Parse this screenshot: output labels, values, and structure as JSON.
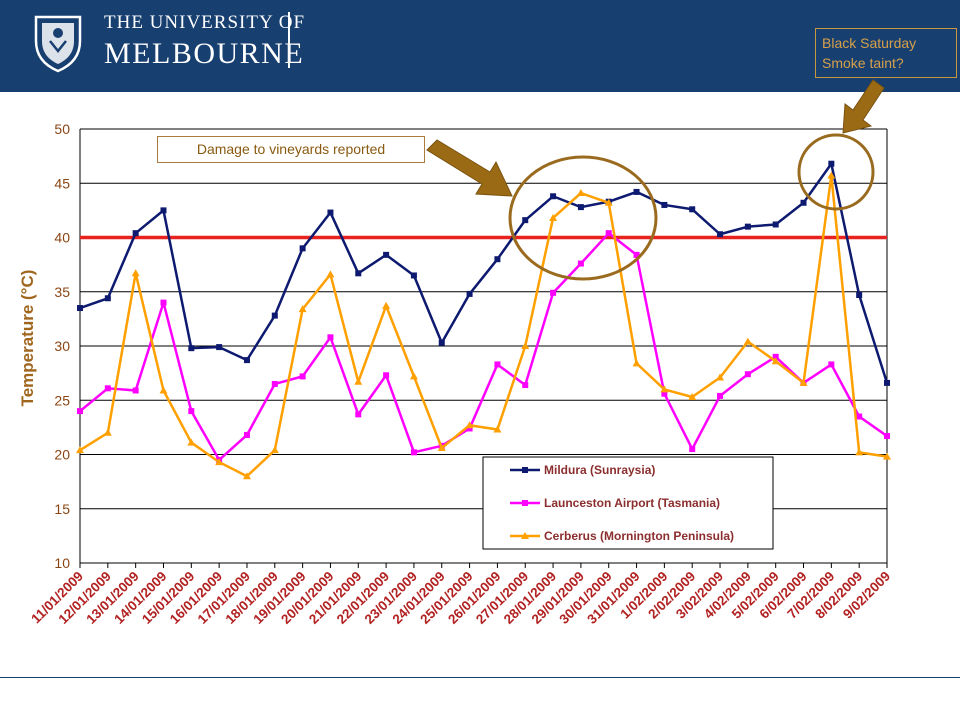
{
  "header": {
    "line1": "THE UNIVERSITY OF",
    "line2": "MELBOURNE",
    "logo_icon": "university-crest-icon",
    "background": "#173f70"
  },
  "annotations": {
    "black_saturday": "Black Saturday\nSmoke taint?",
    "damage": "Damage to vineyards reported"
  },
  "chart_data": {
    "type": "line",
    "title": "",
    "xlabel": "",
    "ylabel": "Temperature (°C)",
    "ylim": [
      10,
      50
    ],
    "yticks": [
      10,
      15,
      20,
      25,
      30,
      35,
      40,
      45,
      50
    ],
    "grid": true,
    "legend_position": "bottom-right",
    "threshold": {
      "value": 40,
      "color": "#e8231f"
    },
    "categories": [
      "11/01/2009",
      "12/01/2009",
      "13/01/2009",
      "14/01/2009",
      "15/01/2009",
      "16/01/2009",
      "17/01/2009",
      "18/01/2009",
      "19/01/2009",
      "20/01/2009",
      "21/01/2009",
      "22/01/2009",
      "23/01/2009",
      "24/01/2009",
      "25/01/2009",
      "26/01/2009",
      "27/01/2009",
      "28/01/2009",
      "29/01/2009",
      "30/01/2009",
      "31/01/2009",
      "1/02/2009",
      "2/02/2009",
      "3/02/2009",
      "4/02/2009",
      "5/02/2009",
      "6/02/2009",
      "7/02/2009",
      "8/02/2009",
      "9/02/2009"
    ],
    "series": [
      {
        "name": "Mildura (Sunraysia)",
        "color": "#0d1a70",
        "marker": "square",
        "values": [
          33.5,
          34.4,
          40.4,
          42.5,
          29.8,
          29.9,
          28.7,
          32.8,
          39.0,
          42.3,
          36.7,
          38.4,
          36.5,
          30.3,
          34.8,
          38.0,
          41.6,
          43.8,
          42.8,
          43.3,
          44.2,
          43.0,
          42.6,
          40.3,
          41.0,
          41.2,
          43.2,
          46.8,
          34.7,
          26.6
        ]
      },
      {
        "name": "Launceston Airport (Tasmania)",
        "color": "#ff00ff",
        "marker": "square",
        "values": [
          24.0,
          26.1,
          25.9,
          34.0,
          24.0,
          19.5,
          21.8,
          26.5,
          27.2,
          30.8,
          23.7,
          27.3,
          20.2,
          20.8,
          22.4,
          28.3,
          26.4,
          34.9,
          37.6,
          40.4,
          38.4,
          25.6,
          20.5,
          25.4,
          27.4,
          29.0,
          26.6,
          28.3,
          23.5,
          21.7
        ]
      },
      {
        "name": "Cerberus (Mornington Peninsula)",
        "color": "#ffa000",
        "marker": "triangle",
        "values": [
          20.4,
          22.0,
          36.7,
          25.9,
          21.1,
          19.3,
          18.0,
          20.4,
          33.4,
          36.6,
          26.7,
          33.7,
          27.2,
          20.6,
          22.7,
          22.3,
          30.0,
          41.8,
          44.1,
          43.2,
          28.4,
          26.0,
          25.3,
          27.1,
          30.4,
          28.6,
          26.6,
          45.7,
          20.2,
          19.8
        ]
      }
    ]
  }
}
